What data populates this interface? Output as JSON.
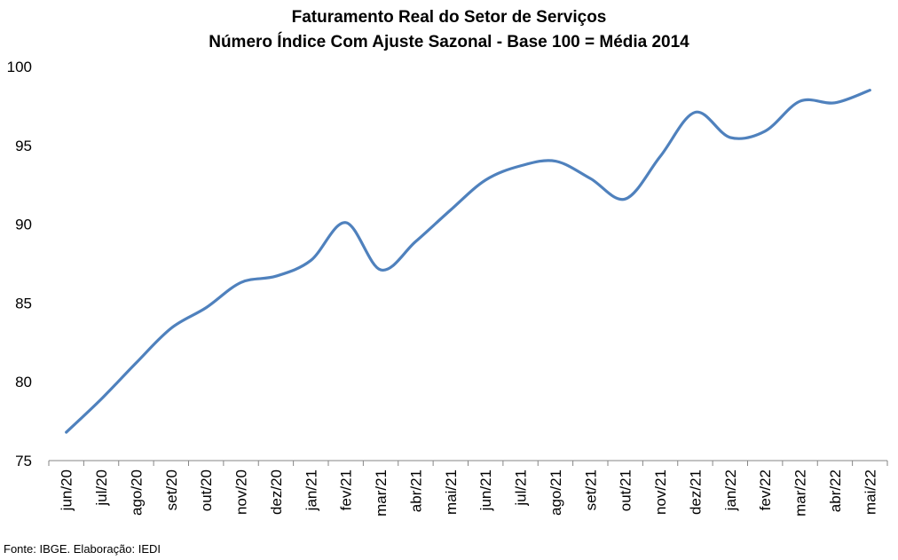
{
  "chart_data": {
    "type": "line",
    "title": "Faturamento Real do Setor de Serviços",
    "subtitle": "Número Índice Com Ajuste Sazonal - Base 100 = Média 2014",
    "xlabel": "",
    "ylabel": "",
    "categories": [
      "jun/20",
      "jul/20",
      "ago/20",
      "set/20",
      "out/20",
      "nov/20",
      "dez/20",
      "jan/21",
      "fev/21",
      "mar/21",
      "abr/21",
      "mai/21",
      "jun/21",
      "jul/21",
      "ago/21",
      "set/21",
      "out/21",
      "nov/21",
      "dez/21",
      "jan/22",
      "fev/22",
      "mar/22",
      "abr/22",
      "mai/22"
    ],
    "series": [
      {
        "values": [
          76.8,
          78.9,
          81.2,
          83.4,
          84.7,
          86.3,
          86.7,
          87.7,
          90.1,
          87.1,
          88.9,
          90.9,
          92.8,
          93.7,
          94.0,
          92.9,
          91.6,
          94.3,
          97.1,
          95.5,
          95.9,
          97.8,
          97.7,
          98.5
        ],
        "color": "#4f81bd"
      }
    ],
    "ylim": [
      75,
      100
    ],
    "yticks": [
      75,
      80,
      85,
      90,
      95,
      100
    ],
    "grid": false,
    "legend": "none"
  },
  "footer": {
    "source": "Fonte: IBGE. Elaboração: IEDI"
  }
}
